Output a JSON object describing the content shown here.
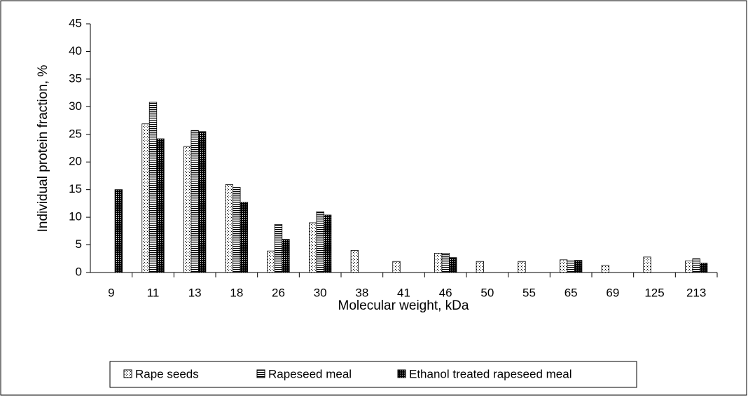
{
  "chart_data": {
    "type": "bar",
    "y_label": "Individual protein fraction, %",
    "x_label": "Molecular weight, kDa",
    "categories": [
      "9",
      "11",
      "13",
      "18",
      "26",
      "30",
      "38",
      "41",
      "46",
      "50",
      "55",
      "65",
      "69",
      "125",
      "213"
    ],
    "series": [
      {
        "name": "Rape seeds",
        "color": "#000000",
        "pattern": "dots",
        "values": [
          0,
          26.9,
          22.8,
          15.9,
          3.9,
          9,
          4,
          2,
          3.5,
          2,
          2,
          2.3,
          1.3,
          2.8,
          2.1
        ]
      },
      {
        "name": "Rapeseed meal",
        "color": "#000000",
        "pattern": "stripes",
        "values": [
          0,
          30.8,
          25.7,
          15.4,
          8.7,
          11,
          0,
          0,
          3.5,
          0,
          0,
          2.1,
          0,
          0,
          2.5
        ]
      },
      {
        "name": "Ethanol treated rapeseed meal",
        "color": "#000000",
        "pattern": "dense",
        "values": [
          15,
          24.2,
          25.5,
          12.7,
          6,
          10.4,
          0,
          0,
          2.7,
          0,
          0,
          2.2,
          0,
          0,
          1.7
        ]
      }
    ],
    "ylim": [
      0,
      45
    ],
    "yticks": [
      0,
      5,
      10,
      15,
      20,
      25,
      30,
      35,
      40,
      45
    ],
    "grid": false,
    "legend": "bottom"
  }
}
